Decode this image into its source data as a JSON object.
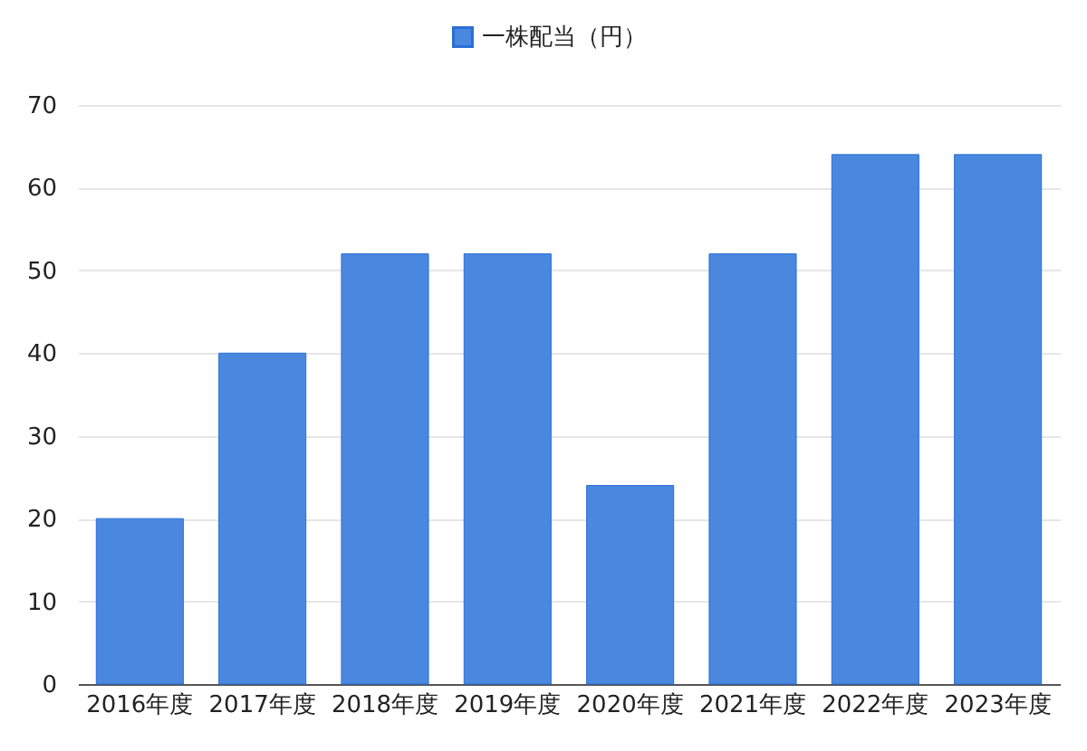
{
  "chart_data": {
    "type": "bar",
    "categories": [
      "2016年度",
      "2017年度",
      "2018年度",
      "2019年度",
      "2020年度",
      "2021年度",
      "2022年度",
      "2023年度"
    ],
    "series": [
      {
        "name": "一株配当（円）",
        "color": "#4a87df",
        "values": [
          20,
          40,
          52,
          52,
          24,
          52,
          64,
          64
        ]
      }
    ],
    "ylim": [
      0,
      70
    ],
    "yticks": [
      0,
      10,
      20,
      30,
      40,
      50,
      60,
      70
    ],
    "grid": "y",
    "legend": "top"
  }
}
